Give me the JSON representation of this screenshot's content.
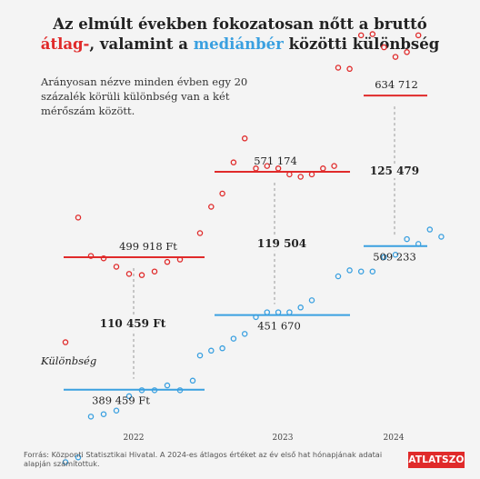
{
  "title": {
    "line1": "Az elmúlt években fokozatosan nőtt a bruttó",
    "line2_red": "átlag-",
    "line2_mid": ", valamint a ",
    "line2_blue": "mediánbér",
    "line2_end": " közötti különbség"
  },
  "note": "Arányosan nézve minden évben egy 20 százalék körüli különbség van a két mérőszám között.",
  "footer": "Forrás: Központi Statisztikai Hivatal. A 2024-es átlagos értéket az év első hat hónapjának adatai alapján számítottuk.",
  "logo": "ATLATSZO",
  "chart_data": {
    "type": "scatter",
    "years": [
      "2022",
      "2023",
      "2024"
    ],
    "colors": {
      "average": "#e02a2a",
      "median": "#3aa0e0",
      "gap": "#999999"
    },
    "average_annual": [
      499918,
      571174,
      634712
    ],
    "median_annual": [
      389459,
      451670,
      509233
    ],
    "average_labels": [
      "499 918 Ft",
      "571 174",
      "634 712"
    ],
    "median_labels": [
      "389 459 Ft",
      "451 670",
      "509 233"
    ],
    "difference_labels": [
      "110 459 Ft",
      "119 504",
      "125 479"
    ],
    "difference_caption": "Különbség",
    "monthly_average": [
      [
        429000,
        533000,
        501000,
        499000,
        492000,
        486000,
        485000,
        488000,
        496000,
        498000
      ],
      [
        520000,
        542000,
        553000,
        579000,
        599000,
        574000,
        576000,
        574000,
        569000,
        567000,
        569000,
        574000,
        576000
      ],
      [
        658000,
        657000,
        685000,
        686000,
        675000,
        667000,
        671000,
        685000
      ]
    ],
    "monthly_median": [
      [
        329000,
        333000,
        367000,
        369000,
        372000,
        384000,
        389000,
        389000,
        393000,
        389000,
        397000
      ],
      [
        418000,
        422000,
        424000,
        432000,
        436000,
        450000,
        454000,
        454000,
        454000,
        458000,
        464000
      ],
      [
        484000,
        489000,
        488000,
        488000,
        500000,
        502000,
        515000,
        511000,
        523000,
        517000
      ]
    ]
  }
}
